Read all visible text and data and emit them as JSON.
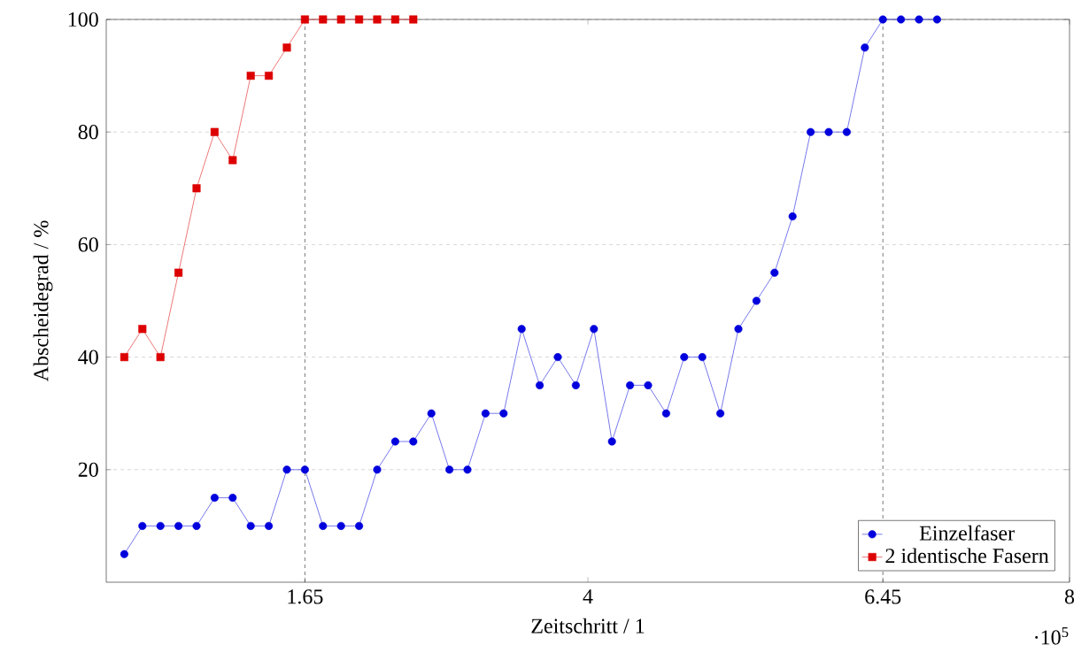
{
  "chart_data": {
    "type": "line",
    "xlabel": "Zeitschritt / 1",
    "ylabel": "Abscheidegrad / %",
    "xlim": [
      0,
      8
    ],
    "ylim": [
      0,
      100
    ],
    "xticks": [
      1.65,
      4,
      6.45,
      8
    ],
    "yticks": [
      20,
      40,
      60,
      80,
      100
    ],
    "grid": "y",
    "legend": "bottom right",
    "line_style": "solid",
    "annotations": [
      "·10$^{5}$"
    ],
    "ref_lines": [
      {
        "axis": "x",
        "value": 1.65,
        "color": "#000000",
        "line_style": "dashed"
      },
      {
        "axis": "x",
        "value": 6.45,
        "color": "#000000",
        "line_style": "dashed"
      }
    ],
    "series": [
      {
        "name": "Einzelfaser",
        "color": "#0000dd",
        "marker": "circle",
        "x": [
          0.15,
          0.3,
          0.45,
          0.6,
          0.75,
          0.9,
          1.05,
          1.2,
          1.35,
          1.5,
          1.65,
          1.8,
          1.95,
          2.1,
          2.25,
          2.4,
          2.55,
          2.7,
          2.85,
          3.0,
          3.15,
          3.3,
          3.45,
          3.6,
          3.75,
          3.9,
          4.05,
          4.2,
          4.35,
          4.5,
          4.65,
          4.8,
          4.95,
          5.1,
          5.25,
          5.4,
          5.55,
          5.7,
          5.85,
          6.0,
          6.15,
          6.3,
          6.45,
          6.6,
          6.75,
          6.9
        ],
        "values": [
          5,
          10,
          10,
          10,
          10,
          15,
          15,
          10,
          10,
          20,
          20,
          10,
          10,
          10,
          20,
          25,
          25,
          30,
          20,
          20,
          30,
          30,
          45,
          35,
          40,
          35,
          45,
          25,
          35,
          35,
          30,
          40,
          40,
          30,
          45,
          50,
          55,
          65,
          80,
          80,
          80,
          95,
          100,
          100,
          100,
          100
        ]
      },
      {
        "name": "2 identische Fasern",
        "color": "#dd0000",
        "marker": "square",
        "x": [
          0.15,
          0.3,
          0.45,
          0.6,
          0.75,
          0.9,
          1.05,
          1.2,
          1.35,
          1.5,
          1.65,
          1.8,
          1.95,
          2.1,
          2.25,
          2.4,
          2.55
        ],
        "values": [
          40,
          45,
          40,
          55,
          70,
          80,
          75,
          90,
          90,
          95,
          100,
          100,
          100,
          100,
          100,
          100,
          100
        ]
      }
    ]
  }
}
